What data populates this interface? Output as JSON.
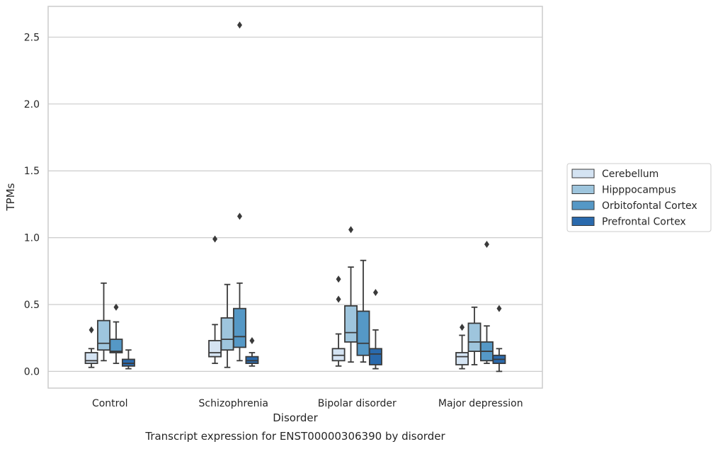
{
  "chart_data": {
    "type": "box",
    "title": "Transcript expression for ENST00000306390 by disorder",
    "xlabel": "Disorder",
    "ylabel": "TPMs",
    "ylim": [
      -0.125,
      2.73
    ],
    "yticks": [
      0.0,
      0.5,
      1.0,
      1.5,
      2.0,
      2.5
    ],
    "ytick_labels": [
      "0.0",
      "0.5",
      "1.0",
      "1.5",
      "2.0",
      "2.5"
    ],
    "grid": true,
    "legend_position": "right",
    "categories": [
      "Control",
      "Schizophrenia",
      "Bipolar disorder",
      "Major depression"
    ],
    "series": [
      {
        "name": "Cerebellum",
        "color": "#d4e3f2",
        "boxes": [
          {
            "whislo": 0.03,
            "q1": 0.06,
            "med": 0.08,
            "q3": 0.14,
            "whishi": 0.17,
            "fliers": [
              0.31
            ]
          },
          {
            "whislo": 0.06,
            "q1": 0.11,
            "med": 0.14,
            "q3": 0.23,
            "whishi": 0.35,
            "fliers": [
              0.99
            ]
          },
          {
            "whislo": 0.04,
            "q1": 0.08,
            "med": 0.12,
            "q3": 0.17,
            "whishi": 0.28,
            "fliers": [
              0.54,
              0.69
            ]
          },
          {
            "whislo": 0.02,
            "q1": 0.05,
            "med": 0.11,
            "q3": 0.14,
            "whishi": 0.27,
            "fliers": [
              0.33
            ]
          }
        ]
      },
      {
        "name": "Hipppocampus",
        "color": "#9ec5dd",
        "boxes": [
          {
            "whislo": 0.08,
            "q1": 0.16,
            "med": 0.21,
            "q3": 0.38,
            "whishi": 0.66,
            "fliers": []
          },
          {
            "whislo": 0.03,
            "q1": 0.16,
            "med": 0.24,
            "q3": 0.4,
            "whishi": 0.65,
            "fliers": []
          },
          {
            "whislo": 0.07,
            "q1": 0.22,
            "med": 0.29,
            "q3": 0.49,
            "whishi": 0.78,
            "fliers": [
              1.06
            ]
          },
          {
            "whislo": 0.05,
            "q1": 0.15,
            "med": 0.22,
            "q3": 0.36,
            "whishi": 0.48,
            "fliers": []
          }
        ]
      },
      {
        "name": "Orbitofontal Cortex",
        "color": "#5598c6",
        "boxes": [
          {
            "whislo": 0.06,
            "q1": 0.14,
            "med": 0.15,
            "q3": 0.24,
            "whishi": 0.37,
            "fliers": [
              0.48
            ]
          },
          {
            "whislo": 0.08,
            "q1": 0.18,
            "med": 0.26,
            "q3": 0.47,
            "whishi": 0.66,
            "fliers": [
              1.16,
              2.59
            ]
          },
          {
            "whislo": 0.07,
            "q1": 0.12,
            "med": 0.21,
            "q3": 0.45,
            "whishi": 0.83,
            "fliers": []
          },
          {
            "whislo": 0.06,
            "q1": 0.08,
            "med": 0.15,
            "q3": 0.22,
            "whishi": 0.34,
            "fliers": [
              0.95
            ]
          }
        ]
      },
      {
        "name": "Prefrontal Cortex",
        "color": "#2a6aad",
        "boxes": [
          {
            "whislo": 0.02,
            "q1": 0.04,
            "med": 0.06,
            "q3": 0.09,
            "whishi": 0.16,
            "fliers": []
          },
          {
            "whislo": 0.04,
            "q1": 0.06,
            "med": 0.08,
            "q3": 0.11,
            "whishi": 0.14,
            "fliers": [
              0.23
            ]
          },
          {
            "whislo": 0.02,
            "q1": 0.05,
            "med": 0.13,
            "q3": 0.17,
            "whishi": 0.31,
            "fliers": [
              0.59
            ]
          },
          {
            "whislo": 0.0,
            "q1": 0.06,
            "med": 0.09,
            "q3": 0.12,
            "whishi": 0.17,
            "fliers": [
              0.47
            ]
          }
        ]
      }
    ]
  },
  "style": {
    "box_edge_color": "#3a3a3a",
    "grid_color": "#cccccc",
    "frame_color": "#cccccc"
  }
}
